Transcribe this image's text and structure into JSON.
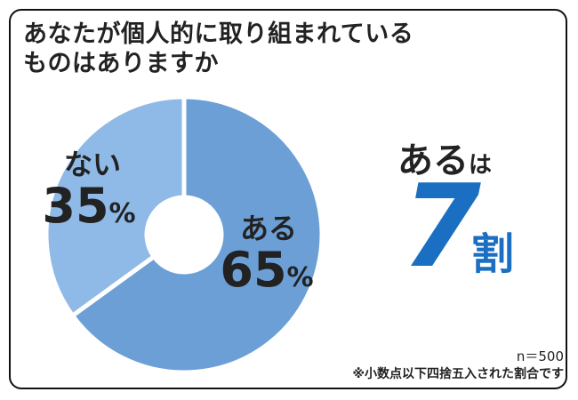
{
  "title_lines": [
    "あなたが個人的に取り組まれている",
    "ものはありますか"
  ],
  "chart_data": {
    "type": "pie",
    "title": "あなたが個人的に取り組まれているものはありますか",
    "slices": [
      {
        "label": "ある",
        "value": 65,
        "value_text": "65",
        "unit": "%",
        "color": "#6b9fd6"
      },
      {
        "label": "ない",
        "value": 35,
        "value_text": "35",
        "unit": "%",
        "color": "#8fb9e6"
      }
    ],
    "donut": true,
    "start": "12 o'clock, clockwise",
    "separator_color": "#ffffff"
  },
  "highlight": {
    "word": "ある",
    "particle": "は",
    "number": "7",
    "unit": "割"
  },
  "footnote": {
    "sample": "n＝500",
    "note": "※小数点以下四捨五入された割合です"
  }
}
